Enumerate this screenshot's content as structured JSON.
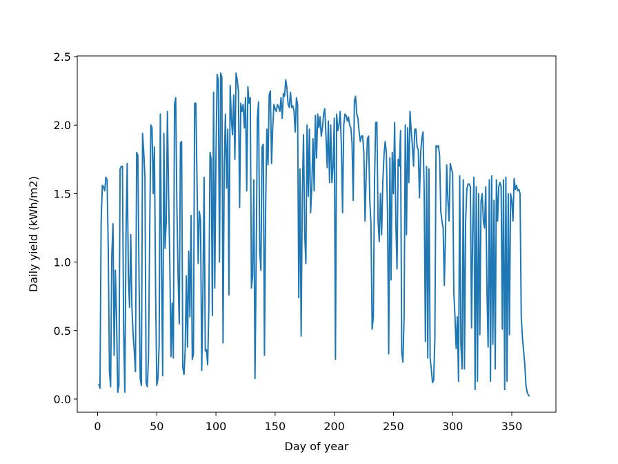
{
  "chart_data": {
    "type": "line",
    "x_label": "Day of year",
    "y_label": "Daily yield (kWh/m2)",
    "color": "#1f77b4",
    "xlim": [
      -17.2,
      387.3
    ],
    "ylim": [
      -0.096,
      2.505
    ],
    "xticks": [
      0,
      50,
      100,
      150,
      200,
      250,
      300,
      350
    ],
    "yticks": [
      {
        "value": 0,
        "label": "0.0"
      },
      0.5,
      {
        "value": 1,
        "label": "1.0"
      },
      1.5,
      {
        "value": 2,
        "label": "2.0"
      },
      2.5
    ],
    "x": [
      1,
      2,
      3,
      4,
      5,
      6,
      7,
      8,
      9,
      10,
      11,
      12,
      13,
      14,
      15,
      16,
      17,
      18,
      19,
      20,
      21,
      22,
      23,
      24,
      25,
      26,
      27,
      28,
      29,
      30,
      31,
      32,
      33,
      34,
      35,
      36,
      37,
      38,
      39,
      40,
      41,
      42,
      43,
      44,
      45,
      46,
      47,
      48,
      49,
      50,
      51,
      52,
      53,
      54,
      55,
      56,
      57,
      58,
      59,
      60,
      61,
      62,
      63,
      64,
      65,
      66,
      67,
      68,
      69,
      70,
      71,
      72,
      73,
      74,
      75,
      76,
      77,
      78,
      79,
      80,
      81,
      82,
      83,
      84,
      85,
      86,
      87,
      88,
      89,
      90,
      91,
      92,
      93,
      94,
      95,
      96,
      97,
      98,
      99,
      100,
      101,
      102,
      103,
      104,
      105,
      106,
      107,
      108,
      109,
      110,
      111,
      112,
      113,
      114,
      115,
      116,
      117,
      118,
      119,
      120,
      121,
      122,
      123,
      124,
      125,
      126,
      127,
      128,
      129,
      130,
      131,
      132,
      133,
      134,
      135,
      136,
      137,
      138,
      139,
      140,
      141,
      142,
      143,
      144,
      145,
      146,
      147,
      148,
      149,
      150,
      151,
      152,
      153,
      154,
      155,
      156,
      157,
      158,
      159,
      160,
      161,
      162,
      163,
      164,
      165,
      166,
      167,
      168,
      169,
      170,
      171,
      172,
      173,
      174,
      175,
      176,
      177,
      178,
      179,
      180,
      181,
      182,
      183,
      184,
      185,
      186,
      187,
      188,
      189,
      190,
      191,
      192,
      193,
      194,
      195,
      196,
      197,
      198,
      199,
      200,
      201,
      202,
      203,
      204,
      205,
      206,
      207,
      208,
      209,
      210,
      211,
      212,
      213,
      214,
      215,
      216,
      217,
      218,
      219,
      220,
      221,
      222,
      223,
      224,
      225,
      226,
      227,
      228,
      229,
      230,
      231,
      232,
      233,
      234,
      235,
      236,
      237,
      238,
      239,
      240,
      241,
      242,
      243,
      244,
      245,
      246,
      247,
      248,
      249,
      250,
      251,
      252,
      253,
      254,
      255,
      256,
      257,
      258,
      259,
      260,
      261,
      262,
      263,
      264,
      265,
      266,
      267,
      268,
      269,
      270,
      271,
      272,
      273,
      274,
      275,
      276,
      277,
      278,
      279,
      280,
      281,
      282,
      283,
      284,
      285,
      286,
      287,
      288,
      289,
      290,
      291,
      292,
      293,
      294,
      295,
      296,
      297,
      298,
      299,
      300,
      301,
      302,
      303,
      304,
      305,
      306,
      307,
      308,
      309,
      310,
      311,
      312,
      313,
      314,
      315,
      316,
      317,
      318,
      319,
      320,
      321,
      322,
      323,
      324,
      325,
      326,
      327,
      328,
      329,
      330,
      331,
      332,
      333,
      334,
      335,
      336,
      337,
      338,
      339,
      340,
      341,
      342,
      343,
      344,
      345,
      346,
      347,
      348,
      349,
      350,
      351,
      352,
      353,
      354,
      355,
      356,
      357,
      358,
      359,
      360,
      361,
      362,
      363,
      364,
      365
    ],
    "values": [
      0.11,
      0.08,
      1.3,
      1.56,
      1.55,
      1.52,
      1.62,
      1.6,
      1.1,
      0.2,
      0.09,
      1.05,
      1.28,
      0.32,
      0.94,
      0.6,
      0.05,
      0.1,
      1.68,
      1.7,
      1.7,
      0.5,
      0.05,
      1.2,
      1.72,
      0.9,
      0.67,
      1.2,
      0.67,
      0.47,
      0.35,
      0.2,
      1.8,
      1.78,
      0.9,
      0.15,
      0.1,
      1.94,
      1.8,
      1.62,
      0.12,
      0.09,
      0.3,
      1.2,
      2.0,
      1.98,
      1.5,
      1.84,
      0.8,
      0.1,
      0.15,
      0.4,
      2.08,
      1.0,
      0.17,
      1.94,
      1.1,
      1.3,
      2.1,
      1.5,
      1.0,
      0.31,
      0.7,
      0.3,
      2.15,
      2.2,
      1.4,
      0.9,
      0.55,
      1.87,
      1.88,
      0.23,
      0.18,
      0.35,
      0.9,
      0.38,
      1.08,
      0.6,
      1.34,
      0.29,
      0.33,
      2.16,
      2.16,
      1.6,
      0.99,
      1.37,
      1.3,
      0.21,
      0.8,
      1.62,
      0.35,
      0.36,
      0.25,
      0.66,
      1.8,
      1.75,
      0.61,
      2.24,
      0.81,
      1.75,
      2.37,
      2.33,
      1.0,
      2.38,
      2.35,
      0.41,
      1.7,
      2.08,
      1.54,
      1.97,
      0.76,
      2.29,
      2.05,
      1.93,
      2.22,
      1.75,
      2.38,
      2.33,
      2.25,
      1.4,
      2.16,
      2.1,
      2.15,
      1.98,
      2.2,
      1.52,
      2.28,
      2.16,
      2.2,
      0.81,
      0.9,
      1.6,
      0.15,
      1.0,
      2.05,
      2.17,
      1.08,
      0.94,
      1.84,
      1.86,
      0.32,
      1.4,
      1.97,
      1.71,
      2.22,
      2.25,
      1.72,
      1.98,
      2.15,
      2.12,
      2.1,
      2.15,
      2.13,
      2.1,
      2.2,
      2.05,
      2.23,
      2.21,
      2.33,
      2.27,
      2.15,
      2.13,
      2.24,
      2.13,
      2.14,
      2.1,
      1.95,
      2.2,
      2.15,
      0.74,
      1.68,
      0.46,
      1.5,
      1.93,
      1.2,
      0.99,
      2.0,
      1.48,
      1.97,
      1.36,
      1.55,
      1.9,
      1.52,
      2.07,
      1.76,
      2.08,
      1.98,
      2.06,
      1.92,
      1.98,
      2.08,
      2.12,
      1.92,
      1.69,
      2.03,
      1.58,
      2.0,
      1.58,
      1.7,
      2.05,
      0.29,
      2.08,
      1.96,
      2.0,
      2.1,
      1.85,
      1.36,
      2.0,
      2.08,
      2.07,
      2.03,
      2.06,
      2.0,
      1.98,
      1.87,
      1.45,
      2.18,
      2.21,
      2.08,
      2.05,
      1.95,
      1.88,
      1.92,
      1.92,
      1.8,
      1.3,
      1.65,
      1.9,
      1.92,
      1.45,
      1.28,
      0.51,
      0.6,
      1.58,
      2.02,
      2.02,
      1.3,
      1.15,
      1.5,
      1.2,
      1.58,
      1.78,
      1.88,
      1.8,
      1.35,
      0.33,
      1.76,
      0.87,
      1.8,
      1.5,
      2.02,
      1.3,
      0.95,
      1.75,
      1.7,
      1.96,
      0.34,
      0.27,
      0.6,
      2.0,
      1.2,
      1.98,
      1.58,
      2.1,
      1.96,
      1.85,
      1.7,
      1.97,
      1.97,
      1.84,
      1.82,
      1.47,
      1.8,
      1.9,
      1.95,
      1.5,
      0.42,
      1.7,
      0.3,
      1.68,
      0.3,
      0.22,
      0.12,
      0.14,
      0.44,
      1.85,
      1.84,
      1.85,
      1.78,
      1.37,
      1.3,
      1.25,
      0.83,
      1.22,
      1.71,
      1.45,
      1.3,
      1.72,
      1.68,
      1.65,
      0.78,
      0.6,
      0.37,
      0.6,
      0.13,
      1.63,
      0.4,
      0.22,
      1.6,
      0.22,
      1.3,
      1.53,
      1.57,
      1.57,
      1.55,
      0.52,
      1.25,
      1.62,
      0.07,
      1.55,
      0.13,
      1.5,
      0.47,
      1.44,
      1.5,
      1.3,
      1.25,
      1.55,
      0.8,
      0.38,
      1.6,
      0.13,
      1.63,
      0.4,
      1.45,
      0.22,
      1.6,
      1.3,
      1.55,
      1.58,
      1.55,
      0.51,
      1.6,
      0.07,
      1.62,
      0.13,
      1.5,
      0.47,
      1.5,
      1.45,
      1.3,
      1.61,
      1.53,
      1.56,
      1.52,
      1.53,
      1.5,
      0.6,
      0.45,
      0.35,
      0.25,
      0.1,
      0.05,
      0.03,
      0.02
    ]
  }
}
